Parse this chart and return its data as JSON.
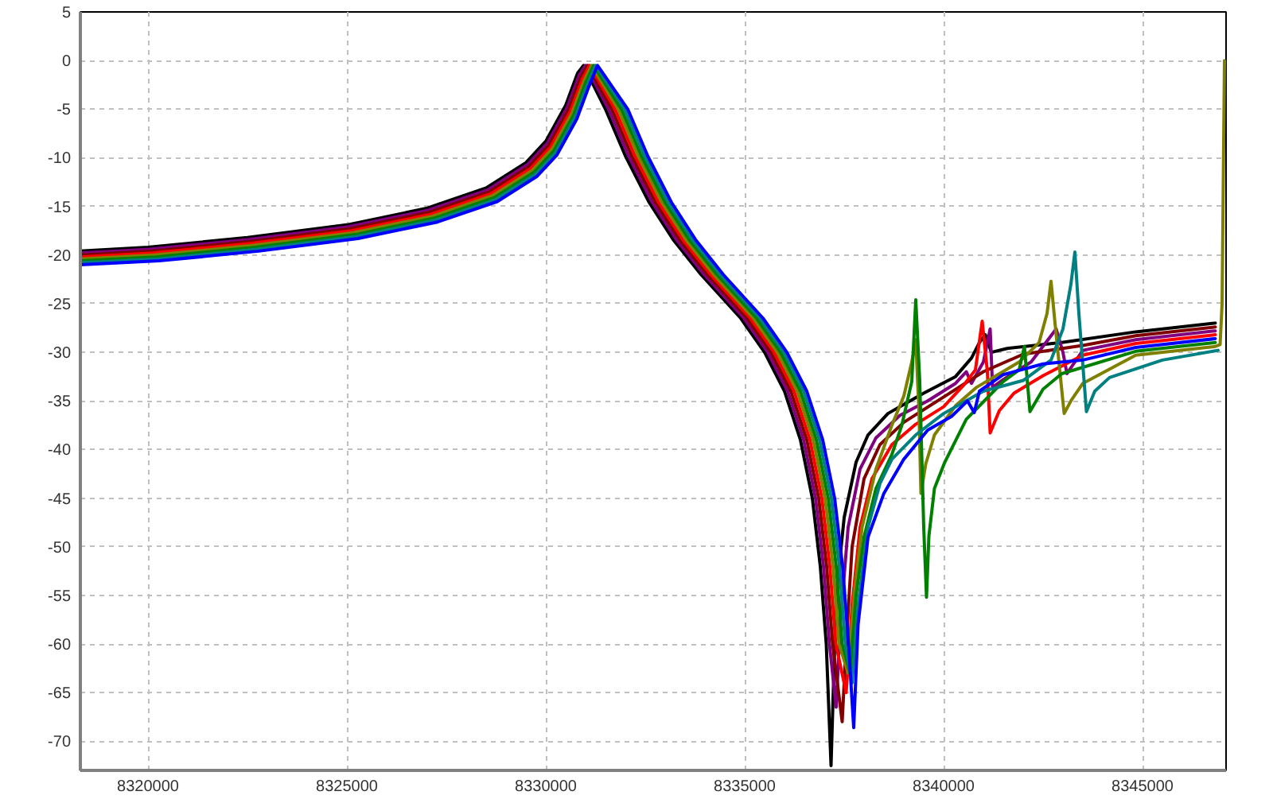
{
  "chart_data": {
    "type": "line",
    "xlim": [
      8318300,
      8347100
    ],
    "ylim": [
      -73,
      5
    ],
    "xticks": [
      8320000,
      8325000,
      8330000,
      8335000,
      8340000,
      8345000
    ],
    "yticks": [
      5,
      0,
      -5,
      -10,
      -15,
      -20,
      -25,
      -30,
      -35,
      -40,
      -45,
      -50,
      -55,
      -60,
      -65,
      -70
    ],
    "grid": true,
    "line_style": "solid",
    "series": [
      {
        "color": "#000000",
        "x": [
          8318300,
          8320000,
          8322500,
          8325000,
          8327000,
          8328500,
          8329500,
          8330000,
          8330500,
          8330800,
          8330950,
          8331500,
          8332000,
          8332600,
          8333200,
          8333900,
          8334900,
          8335500,
          8336000,
          8336400,
          8336700,
          8336900,
          8337050,
          8337170,
          8337300,
          8337500,
          8337800,
          8338100,
          8338600,
          8339500,
          8340300,
          8340700,
          8340900,
          8341050,
          8341200,
          8341600,
          8342970,
          8344830,
          8346830
        ],
        "values": [
          -19.6,
          -19.2,
          -18.2,
          -16.9,
          -15.2,
          -13.1,
          -10.5,
          -8.3,
          -4.6,
          -1.3,
          -0.5,
          -5.0,
          -9.8,
          -14.6,
          -18.4,
          -22.0,
          -26.5,
          -30.0,
          -34.0,
          -39.0,
          -45.0,
          -52.0,
          -60.0,
          -72.5,
          -55.0,
          -47.0,
          -41.3,
          -38.5,
          -36.3,
          -34.2,
          -32.5,
          -30.6,
          -29.0,
          -28.2,
          -30.0,
          -29.6,
          -29.0,
          -27.9,
          -27.0
        ]
      },
      {
        "color": "#800080",
        "x": [
          8318300,
          8320040,
          8322540,
          8325040,
          8327040,
          8328540,
          8329540,
          8330040,
          8330540,
          8330840,
          8331000,
          8331580,
          8332080,
          8332680,
          8333280,
          8333980,
          8334980,
          8335580,
          8336080,
          8336480,
          8336780,
          8336980,
          8337130,
          8337300,
          8337400,
          8337600,
          8337900,
          8338300,
          8338900,
          8339600,
          8340300,
          8340570,
          8340700,
          8341000,
          8341170,
          8341230,
          8341500,
          8342200,
          8342830,
          8343000,
          8343100,
          8343500,
          8344830,
          8346830
        ],
        "values": [
          -19.8,
          -19.4,
          -18.4,
          -17.1,
          -15.4,
          -13.3,
          -10.7,
          -8.5,
          -4.8,
          -1.5,
          -0.5,
          -5.0,
          -9.8,
          -14.6,
          -18.4,
          -22.0,
          -26.5,
          -30.0,
          -34.0,
          -39.0,
          -45.0,
          -52.0,
          -60.0,
          -66.5,
          -58.0,
          -48.0,
          -42.0,
          -38.8,
          -36.5,
          -35.0,
          -33.2,
          -32.0,
          -33.2,
          -31.0,
          -27.6,
          -33.6,
          -32.8,
          -31.0,
          -27.6,
          -30.0,
          -32.2,
          -29.8,
          -28.7,
          -27.8
        ]
      },
      {
        "color": "#800000",
        "x": [
          8318300,
          8320080,
          8322580,
          8325080,
          8327080,
          8328580,
          8329580,
          8330080,
          8330580,
          8330880,
          8331050,
          8331660,
          8332160,
          8332760,
          8333360,
          8334060,
          8335060,
          8335660,
          8336160,
          8336560,
          8336860,
          8337060,
          8337210,
          8337450,
          8337550,
          8337700,
          8338000,
          8338400,
          8339000,
          8340000,
          8341000,
          8342000,
          8343500,
          8344830,
          8346830
        ],
        "values": [
          -20.0,
          -19.6,
          -18.6,
          -17.3,
          -15.6,
          -13.5,
          -10.9,
          -8.7,
          -5.0,
          -1.7,
          -0.5,
          -5.0,
          -9.8,
          -14.6,
          -18.4,
          -22.0,
          -26.5,
          -30.0,
          -34.0,
          -39.0,
          -45.0,
          -52.0,
          -60.0,
          -68.0,
          -60.0,
          -50.0,
          -43.0,
          -39.5,
          -37.2,
          -34.6,
          -32.0,
          -30.2,
          -29.3,
          -28.3,
          -27.4
        ]
      },
      {
        "color": "#ff0000",
        "x": [
          8318300,
          8320120,
          8322620,
          8325120,
          8327120,
          8328620,
          8329620,
          8330120,
          8330620,
          8330920,
          8331100,
          8331740,
          8332240,
          8332840,
          8333440,
          8334140,
          8335140,
          8335740,
          8336240,
          8336640,
          8336940,
          8337140,
          8337290,
          8337550,
          8337700,
          8337900,
          8338200,
          8338700,
          8339300,
          8340000,
          8340500,
          8340800,
          8340970,
          8341100,
          8341170,
          8341400,
          8341770,
          8342500,
          8343500,
          8344830,
          8346830
        ],
        "values": [
          -20.2,
          -19.8,
          -18.8,
          -17.5,
          -15.8,
          -13.7,
          -11.1,
          -8.9,
          -5.2,
          -1.9,
          -0.5,
          -5.0,
          -9.8,
          -14.6,
          -18.4,
          -22.0,
          -26.5,
          -30.0,
          -34.0,
          -39.0,
          -45.0,
          -52.0,
          -60.0,
          -65.0,
          -56.0,
          -48.0,
          -43.0,
          -39.5,
          -37.4,
          -35.6,
          -33.4,
          -31.8,
          -26.8,
          -32.0,
          -38.3,
          -36.0,
          -34.2,
          -32.4,
          -30.3,
          -29.1,
          -28.2
        ]
      },
      {
        "color": "#808000",
        "x": [
          8318300,
          8320160,
          8322660,
          8325160,
          8327160,
          8328660,
          8329660,
          8330160,
          8330660,
          8330960,
          8331150,
          8331820,
          8332320,
          8332920,
          8333520,
          8334220,
          8335220,
          8335820,
          8336320,
          8336720,
          8337020,
          8337220,
          8337370,
          8337600,
          8337750,
          8337950,
          8338300,
          8338700,
          8339000,
          8339200,
          8339300,
          8339380,
          8339430,
          8339550,
          8339770,
          8340300,
          8340830,
          8341900,
          8342400,
          8342600,
          8342700,
          8342800,
          8343030,
          8343200,
          8343500,
          8344830,
          8346830,
          8346950,
          8347000,
          8347060
        ],
        "values": [
          -20.4,
          -20.0,
          -19.0,
          -17.7,
          -16.0,
          -13.9,
          -11.3,
          -9.1,
          -5.4,
          -2.1,
          -0.5,
          -5.0,
          -9.8,
          -14.6,
          -18.4,
          -22.0,
          -26.5,
          -30.0,
          -34.0,
          -39.0,
          -45.0,
          -52.0,
          -60.0,
          -63.0,
          -55.0,
          -48.0,
          -42.0,
          -37.5,
          -34.5,
          -31.0,
          -28.7,
          -36.0,
          -44.5,
          -41.5,
          -38.5,
          -35.5,
          -33.6,
          -31.0,
          -29.0,
          -26.0,
          -22.7,
          -27.0,
          -36.3,
          -35.0,
          -33.2,
          -30.3,
          -29.4,
          -29.2,
          -25.0,
          0.0
        ]
      },
      {
        "color": "#008000",
        "x": [
          8318300,
          8320200,
          8322700,
          8325200,
          8327200,
          8328700,
          8329700,
          8330200,
          8330700,
          8331000,
          8331200,
          8331900,
          8332400,
          8333000,
          8333600,
          8334300,
          8335300,
          8335900,
          8336400,
          8336800,
          8337100,
          8337300,
          8337450,
          8337650,
          8337800,
          8338000,
          8338300,
          8338700,
          8338950,
          8339200,
          8339300,
          8339400,
          8339500,
          8339570,
          8339630,
          8339770,
          8340030,
          8340570,
          8341500,
          8341900,
          8342030,
          8342170,
          8342500,
          8342970,
          8344830,
          8346830
        ],
        "values": [
          -20.6,
          -20.2,
          -19.2,
          -17.9,
          -16.2,
          -14.1,
          -11.5,
          -9.3,
          -5.6,
          -2.3,
          -0.5,
          -5.0,
          -9.8,
          -14.6,
          -18.4,
          -22.0,
          -26.5,
          -30.0,
          -34.0,
          -39.0,
          -45.0,
          -52.0,
          -60.0,
          -63.0,
          -55.0,
          -49.0,
          -44.0,
          -40.5,
          -37.5,
          -33.0,
          -24.6,
          -33.0,
          -48.0,
          -55.2,
          -48.9,
          -44.0,
          -41.3,
          -36.9,
          -33.0,
          -31.8,
          -29.4,
          -36.1,
          -33.8,
          -32.2,
          -29.9,
          -29.0
        ]
      },
      {
        "color": "#008080",
        "x": [
          8318300,
          8320240,
          8322740,
          8325240,
          8327240,
          8328740,
          8329740,
          8330240,
          8330740,
          8331040,
          8331250,
          8331980,
          8332480,
          8333080,
          8333680,
          8334380,
          8335380,
          8335980,
          8336480,
          8336880,
          8337180,
          8337380,
          8337530,
          8337700,
          8337850,
          8338100,
          8338400,
          8338700,
          8339300,
          8340000,
          8341000,
          8342000,
          8342700,
          8343000,
          8343200,
          8343300,
          8343400,
          8343590,
          8343800,
          8344170,
          8345500,
          8346900
        ],
        "values": [
          -20.8,
          -20.4,
          -19.4,
          -18.1,
          -16.4,
          -14.3,
          -11.7,
          -9.5,
          -5.8,
          -2.5,
          -0.5,
          -5.0,
          -9.8,
          -14.6,
          -18.4,
          -22.0,
          -26.5,
          -30.0,
          -34.0,
          -39.0,
          -45.0,
          -52.0,
          -60.0,
          -64.0,
          -56.0,
          -48.0,
          -43.5,
          -41.0,
          -38.5,
          -36.3,
          -34.0,
          -32.9,
          -30.8,
          -27.6,
          -23.0,
          -19.7,
          -26.0,
          -36.1,
          -34.0,
          -32.6,
          -30.8,
          -29.8
        ]
      },
      {
        "color": "#0000ff",
        "x": [
          8318300,
          8320280,
          8322780,
          8325280,
          8327280,
          8328780,
          8329780,
          8330280,
          8330780,
          8331080,
          8331300,
          8332060,
          8332560,
          8333160,
          8333760,
          8334460,
          8335460,
          8336060,
          8336560,
          8336960,
          8337260,
          8337460,
          8337610,
          8337740,
          8337850,
          8338100,
          8338500,
          8339000,
          8339600,
          8340200,
          8340600,
          8340770,
          8340900,
          8341500,
          8342500,
          8343500,
          8344830,
          8346830
        ],
        "values": [
          -21.0,
          -20.6,
          -19.6,
          -18.3,
          -16.6,
          -14.5,
          -11.9,
          -9.7,
          -6.0,
          -2.7,
          -0.5,
          -5.0,
          -9.8,
          -14.6,
          -18.4,
          -22.0,
          -26.5,
          -30.0,
          -34.0,
          -39.0,
          -45.0,
          -52.0,
          -60.0,
          -68.6,
          -58.0,
          -49.0,
          -44.5,
          -41.0,
          -38.0,
          -36.6,
          -35.0,
          -36.2,
          -34.0,
          -32.3,
          -31.2,
          -30.8,
          -29.5,
          -28.6
        ]
      }
    ]
  }
}
